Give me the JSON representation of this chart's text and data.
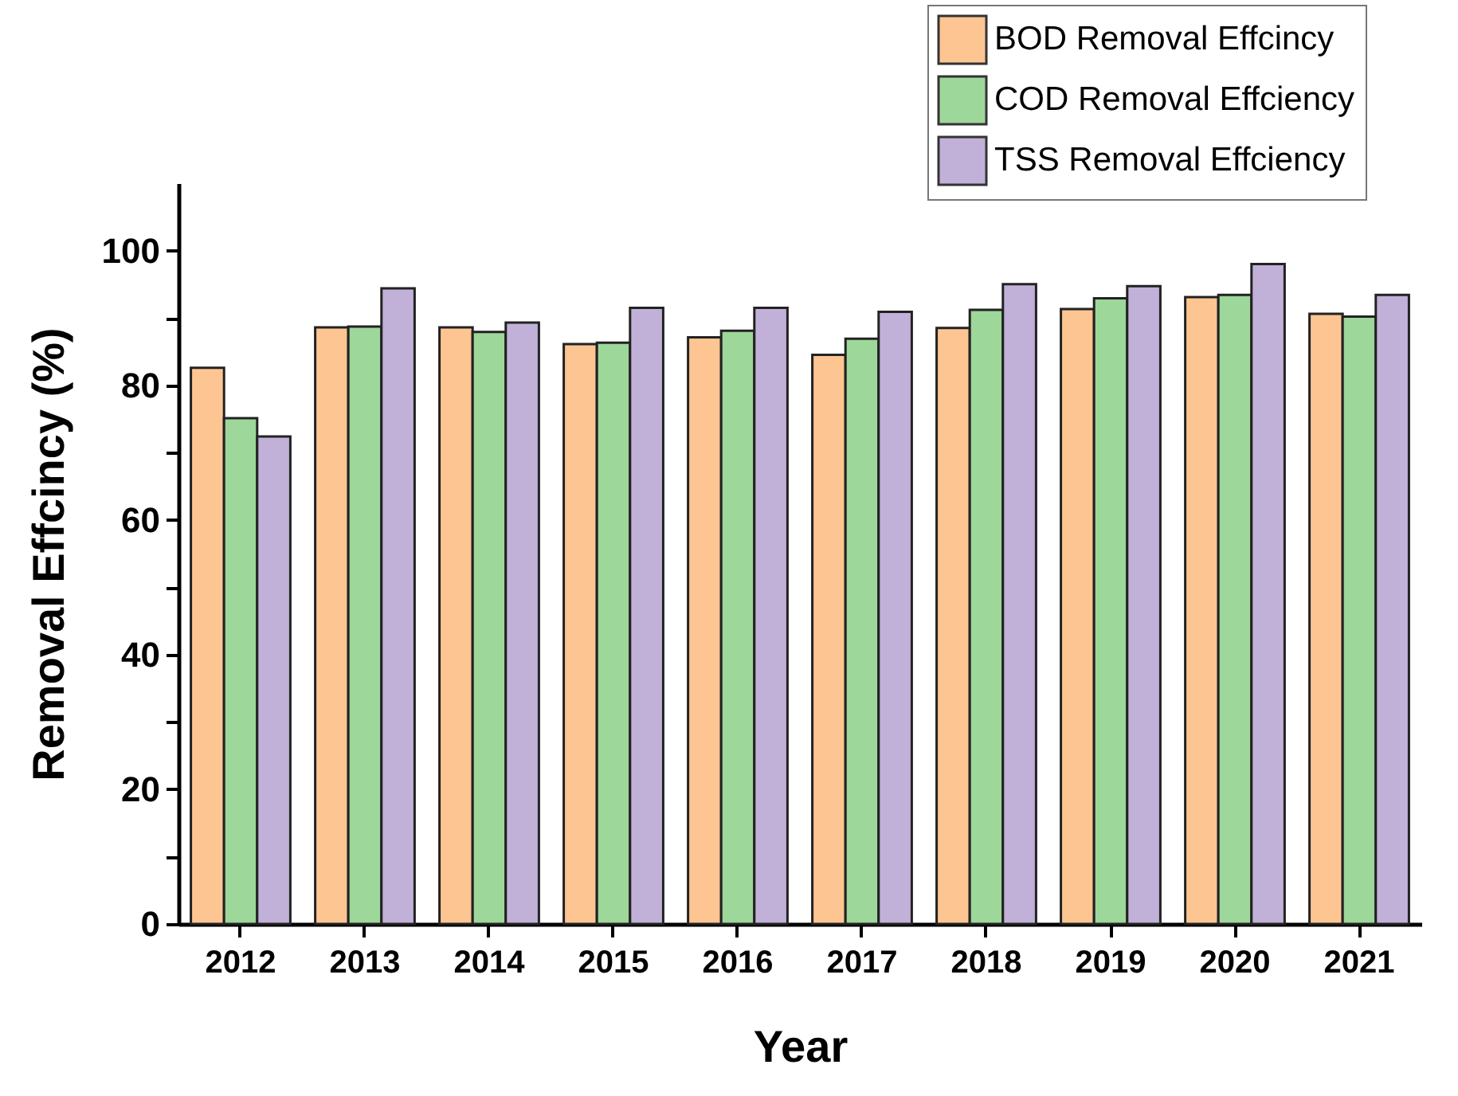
{
  "chart_data": {
    "type": "bar",
    "xlabel": "Year",
    "ylabel": "Removal Effcincy (%)",
    "categories": [
      "2012",
      "2013",
      "2014",
      "2015",
      "2016",
      "2017",
      "2018",
      "2019",
      "2020",
      "2021"
    ],
    "series": [
      {
        "name": "BOD Removal Effcincy",
        "color": "#fdc592",
        "values": [
          82.6,
          88.6,
          88.6,
          86.1,
          87.1,
          84.5,
          88.5,
          91.3,
          93.1,
          90.6
        ]
      },
      {
        "name": "COD Removal Effciency",
        "color": "#9dd79a",
        "values": [
          75.1,
          88.7,
          87.9,
          86.3,
          88.1,
          86.9,
          91.2,
          92.9,
          93.4,
          90.2
        ]
      },
      {
        "name": "TSS Removal Effciency",
        "color": "#c1b1d8",
        "values": [
          72.4,
          94.4,
          89.3,
          91.5,
          91.5,
          90.9,
          95.0,
          94.7,
          98.0,
          93.4
        ]
      }
    ],
    "ylim": [
      0,
      110
    ],
    "yticks": [
      0,
      {
        "value": 10,
        "label": null
      },
      20,
      {
        "value": 30,
        "label": null
      },
      40,
      {
        "value": 50,
        "label": null
      },
      60,
      {
        "value": 70,
        "label": null
      },
      80,
      {
        "value": 90,
        "label": null
      },
      100
    ],
    "grid": false,
    "legend": "top right"
  }
}
